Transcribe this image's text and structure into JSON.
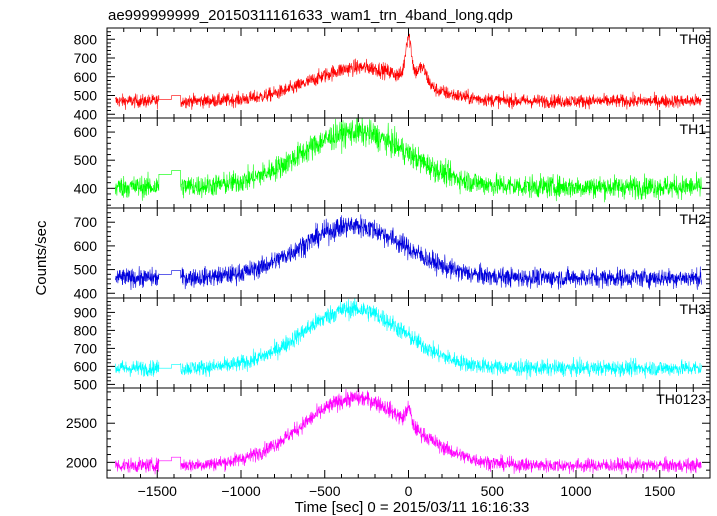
{
  "title": "ae999999999_20150311161633_wam1_trn_4band_long.qdp",
  "chart_data": {
    "type": "line",
    "title": "ae999999999_20150311161633_wam1_trn_4band_long.qdp",
    "xlabel": "Time [sec] 0 = 2015/03/11 16:16:33",
    "ylabel": "Counts/sec",
    "xlim": [
      -1800,
      1800
    ],
    "xticks": [
      -1500,
      -1000,
      -500,
      0,
      500,
      1000,
      1500
    ],
    "xtick_labels": [
      "−1500",
      "−1000",
      "−500",
      "0",
      "500",
      "1000",
      "1500"
    ],
    "grid": false,
    "data_gap": [
      -1490,
      -1360
    ],
    "panels": [
      {
        "name": "TH0",
        "color": "#ff0000",
        "ylim": [
          380,
          860
        ],
        "yticks": [
          400,
          500,
          600,
          700,
          800
        ],
        "baseline": 470,
        "noise": 18,
        "gap_level": 480,
        "peaks": [
          {
            "center": -280,
            "width": 300,
            "amplitude": 180
          },
          {
            "center": 0,
            "width": 18,
            "amplitude": 230
          },
          {
            "center": 80,
            "width": 30,
            "amplitude": 90
          }
        ]
      },
      {
        "name": "TH1",
        "color": "#00ff00",
        "ylim": [
          330,
          650
        ],
        "yticks": [
          400,
          500,
          600
        ],
        "baseline": 405,
        "noise": 20,
        "gap_level": 450,
        "peaks": [
          {
            "center": -320,
            "width": 320,
            "amplitude": 195
          }
        ]
      },
      {
        "name": "TH2",
        "color": "#0000dd",
        "ylim": [
          380,
          760
        ],
        "yticks": [
          400,
          500,
          600,
          700
        ],
        "baseline": 465,
        "noise": 20,
        "gap_level": 480,
        "peaks": [
          {
            "center": -330,
            "width": 310,
            "amplitude": 220
          }
        ]
      },
      {
        "name": "TH3",
        "color": "#00ffff",
        "ylim": [
          480,
          980
        ],
        "yticks": [
          500,
          600,
          700,
          800,
          900
        ],
        "baseline": 590,
        "noise": 22,
        "gap_level": 590,
        "peaks": [
          {
            "center": -330,
            "width": 300,
            "amplitude": 330
          }
        ]
      },
      {
        "name": "TH0123",
        "color": "#ff00ff",
        "ylim": [
          1800,
          2950
        ],
        "yticks": [
          2000,
          2500
        ],
        "baseline": 1960,
        "noise": 45,
        "gap_level": 2020,
        "peaks": [
          {
            "center": -310,
            "width": 320,
            "amplitude": 860
          },
          {
            "center": 0,
            "width": 15,
            "amplitude": 200
          }
        ]
      }
    ]
  }
}
